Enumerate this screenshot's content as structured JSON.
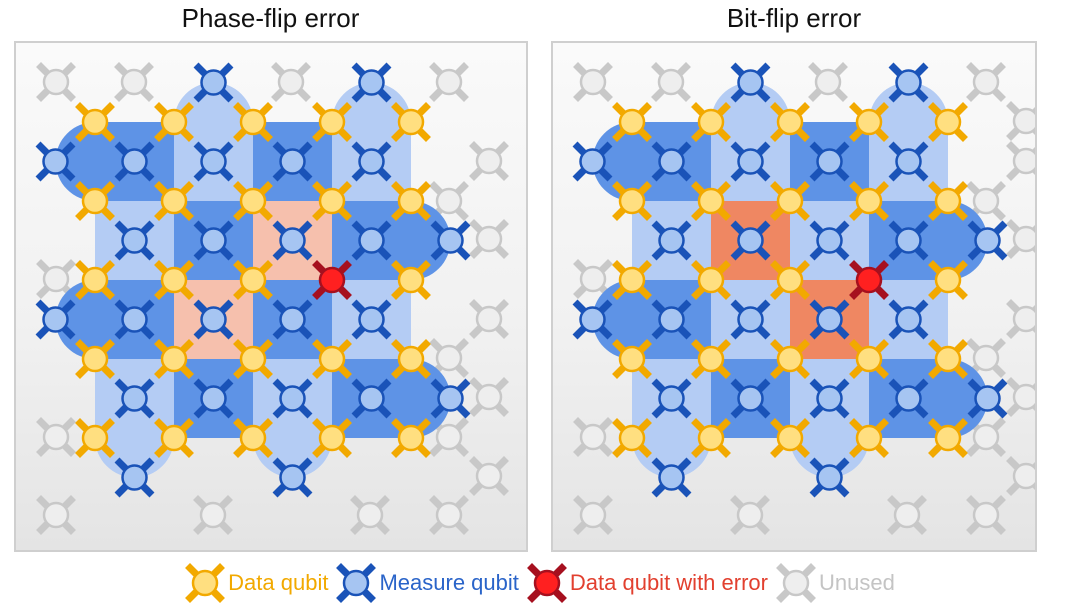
{
  "titles": {
    "left": "Phase-flip error",
    "right": "Bit-flip error"
  },
  "legend": {
    "data": "Data qubit",
    "measure": "Measure qubit",
    "error": "Data qubit with error",
    "unused": "Unused"
  },
  "colors": {
    "data_fill": "#ffdf80",
    "data_stroke": "#f2a900",
    "measure_fill": "#a6c5f2",
    "measure_stroke": "#1a53b8",
    "error_fill": "#ff2020",
    "error_stroke": "#a6101f",
    "unused_fill": "#eeeeee",
    "unused_stroke": "#c8c8c8",
    "plaquette_dark": "#5e93e6",
    "plaquette_light": "#b4ccf4",
    "highlight_phase": "#f6c0ad",
    "highlight_bit": "#ef8762"
  },
  "panels": [
    {
      "id": "phase-flip",
      "error_qubit": "data",
      "highlighted_plaquettes": [
        "measure-r2c3",
        "measure-r3c2"
      ]
    },
    {
      "id": "bit-flip",
      "error_qubit": "data",
      "highlighted_plaquettes": [
        "measure-r2c2",
        "measure-r3c3"
      ]
    }
  ]
}
